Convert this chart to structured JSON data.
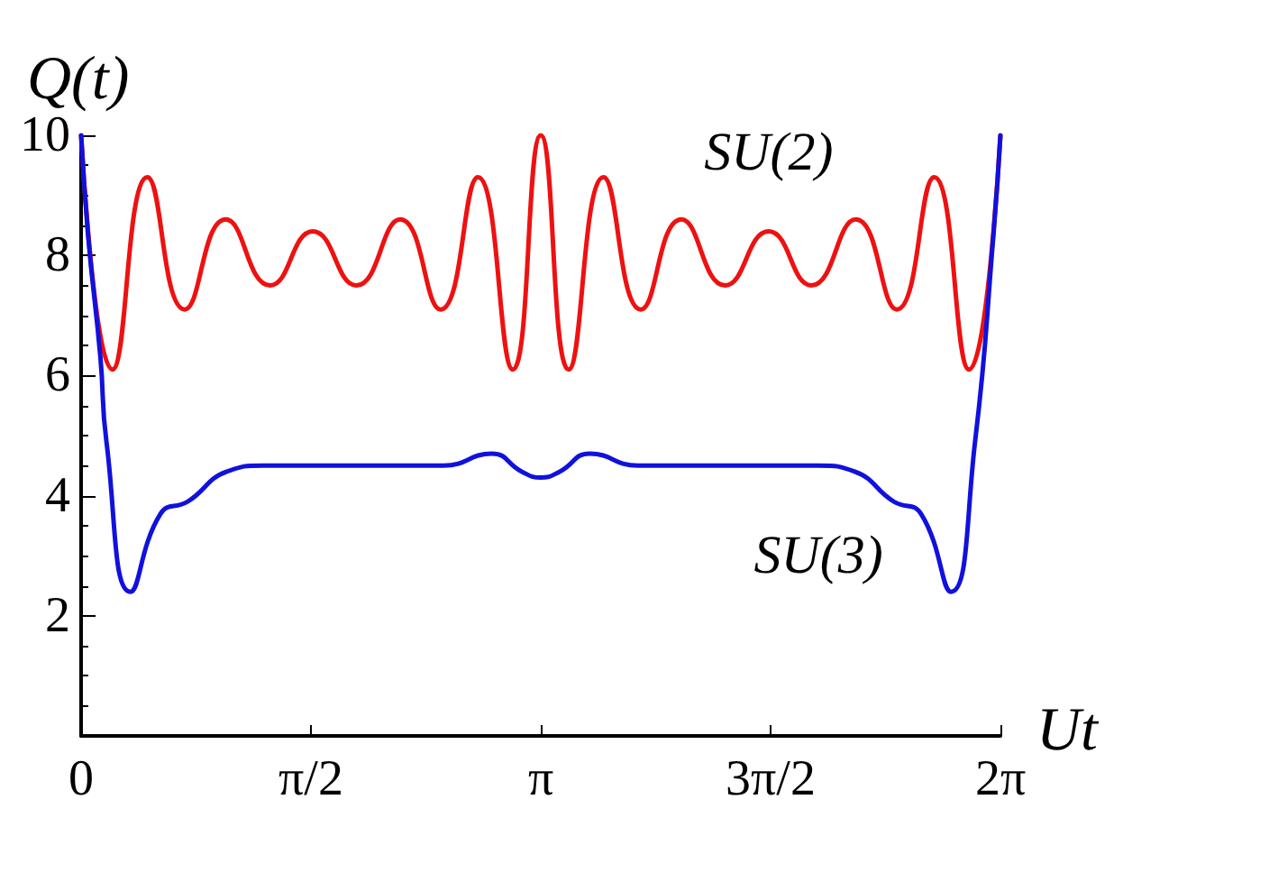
{
  "chart_data": {
    "type": "line",
    "xlabel": "Ut",
    "ylabel": "Q(t)",
    "xlim": [
      0,
      6.2832
    ],
    "ylim": [
      0,
      10
    ],
    "xticks": [
      0,
      {
        "value": 1.5708,
        "label": "π/2"
      },
      {
        "value": 3.1416,
        "label": "π"
      },
      {
        "value": 4.7124,
        "label": "3π/2"
      },
      {
        "value": 6.2832,
        "label": "2π"
      }
    ],
    "yticks": [
      2,
      4,
      6,
      8,
      10
    ],
    "grid": false,
    "legend": false,
    "marker": "none",
    "line_style": "solid",
    "series": [
      {
        "name": "SU(2)",
        "color": "#ee1111",
        "x": [
          0,
          0.214,
          0.453,
          0.708,
          0.988,
          1.292,
          1.584,
          1.881,
          2.181,
          2.457,
          2.712,
          2.951,
          3.1416,
          3.332,
          3.571,
          3.826,
          4.102,
          4.402,
          4.699,
          4.991,
          5.295,
          5.575,
          5.83,
          6.069,
          6.2832
        ],
        "values": [
          10,
          6.1,
          9.3,
          7.1,
          8.6,
          7.5,
          8.4,
          7.5,
          8.6,
          7.1,
          9.3,
          6.1,
          10,
          6.1,
          9.3,
          7.1,
          8.6,
          7.5,
          8.4,
          7.5,
          8.6,
          7.1,
          9.3,
          6.1,
          10
        ]
      },
      {
        "name": "SU(3)",
        "color": "#1111dd",
        "x": [
          0,
          0.049,
          0.132,
          0.173,
          0.337,
          0.543,
          0.728,
          0.996,
          1.243,
          2.477,
          2.807,
          3.012,
          3.1416,
          3.271,
          3.476,
          3.806,
          5.04,
          5.287,
          5.555,
          5.74,
          5.946,
          6.11,
          6.234,
          6.2832
        ],
        "values": [
          10,
          8.3,
          6.3,
          4.9,
          2.4,
          3.7,
          3.9,
          4.4,
          4.5,
          4.5,
          4.7,
          4.4,
          4.3,
          4.4,
          4.7,
          4.5,
          4.5,
          4.4,
          3.9,
          3.7,
          2.4,
          4.9,
          8.3,
          10
        ]
      }
    ]
  }
}
